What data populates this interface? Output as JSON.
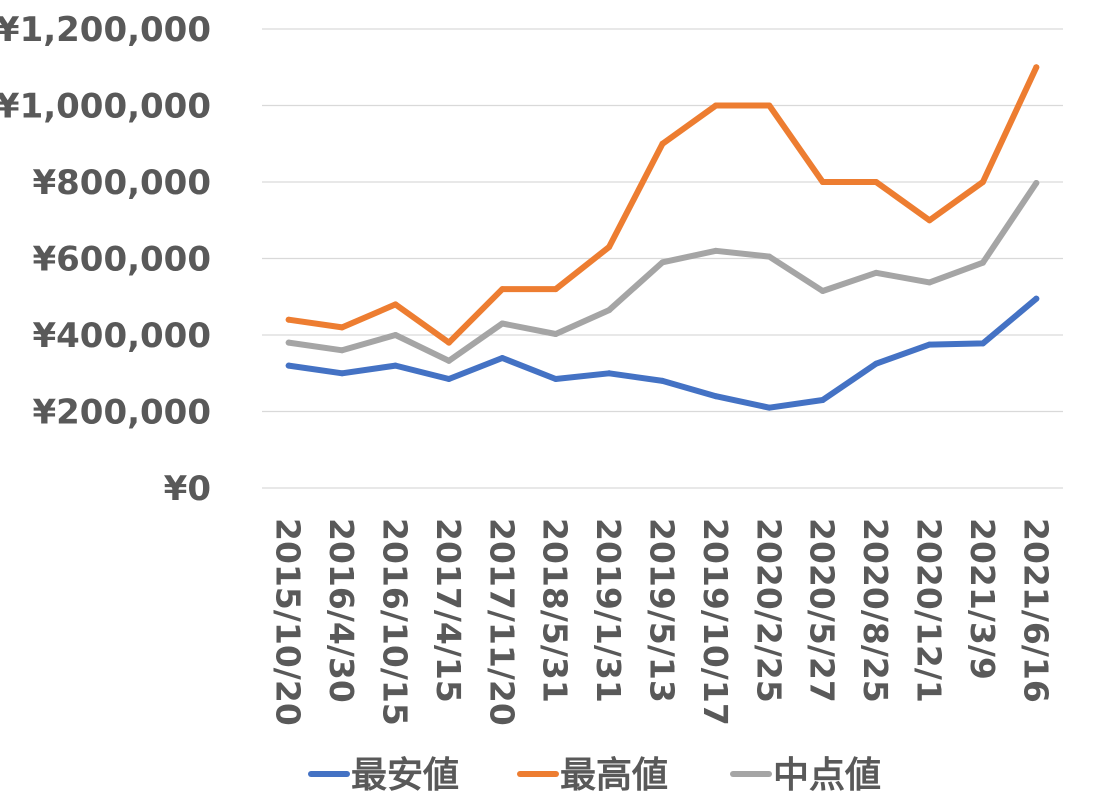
{
  "chart_data": {
    "type": "line",
    "categories": [
      "2015/10/20",
      "2016/4/30",
      "2016/10/15",
      "2017/4/15",
      "2017/11/20",
      "2018/5/31",
      "2019/1/31",
      "2019/5/13",
      "2019/10/17",
      "2020/2/25",
      "2020/5/27",
      "2020/8/25",
      "2020/12/1",
      "2021/3/9",
      "2021/6/16"
    ],
    "series": [
      {
        "name": "最安値",
        "color": "#4472c4",
        "values": [
          320000,
          300000,
          320000,
          285000,
          340000,
          285000,
          300000,
          280000,
          240000,
          210000,
          230000,
          325000,
          375000,
          378000,
          495000
        ]
      },
      {
        "name": "最高値",
        "color": "#ed7d31",
        "values": [
          440000,
          420000,
          480000,
          380000,
          520000,
          520000,
          630000,
          900000,
          1000000,
          1000000,
          800000,
          800000,
          700000,
          800000,
          1100000
        ]
      },
      {
        "name": "中点値",
        "color": "#a5a5a5",
        "values": [
          380000,
          360000,
          400000,
          332500,
          430000,
          402500,
          465000,
          590000,
          620000,
          605000,
          515000,
          562500,
          537500,
          589000,
          797500
        ]
      }
    ],
    "ylim": [
      0,
      1200000
    ],
    "y_ticks": [
      {
        "value": 0,
        "label": "¥0"
      },
      {
        "value": 200000,
        "label": "¥200,000"
      },
      {
        "value": 400000,
        "label": "¥400,000"
      },
      {
        "value": 600000,
        "label": "¥600,000"
      },
      {
        "value": 800000,
        "label": "¥800,000"
      },
      {
        "value": 1000000,
        "label": "¥1,000,000"
      },
      {
        "value": 1200000,
        "label": "¥1,200,000"
      }
    ],
    "grid": true,
    "legend_position": "bottom",
    "x_tick_rotation": "vertical"
  }
}
